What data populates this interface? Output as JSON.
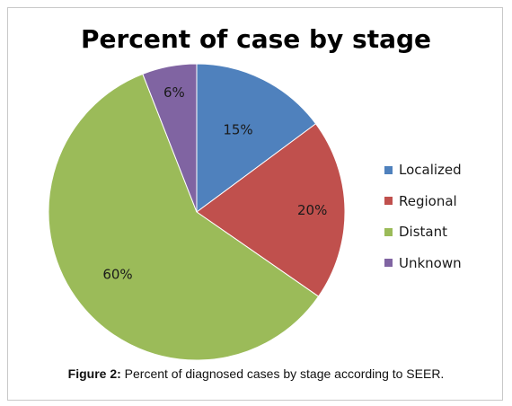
{
  "chart_data": {
    "type": "pie",
    "title": "Percent of case by stage",
    "categories": [
      "Localized",
      "Regional",
      "Distant",
      "Unknown"
    ],
    "values": [
      15,
      20,
      60,
      6
    ],
    "labels": [
      "15%",
      "20%",
      "60%",
      "6%"
    ],
    "colors": [
      "#4f81bd",
      "#c0504d",
      "#9bbb59",
      "#8064a2"
    ],
    "legend_position": "right"
  },
  "caption": {
    "prefix": "Figure 2:",
    "text": " Percent of diagnosed cases by stage according to SEER."
  }
}
